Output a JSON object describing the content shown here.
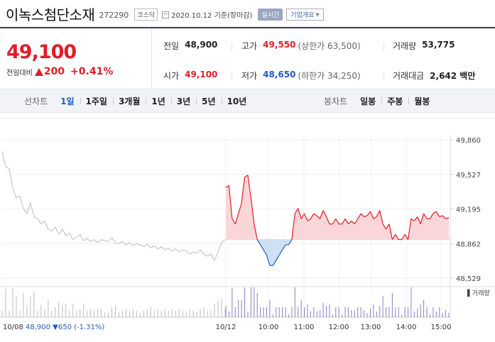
{
  "header": {
    "stock_name": "이녹스첨단소재",
    "stock_code": "272290",
    "market": "코스닥",
    "date": "2020.10.12",
    "date_suffix": "기준(장마감)",
    "realtime_label": "실시간",
    "company_button": "기업개요"
  },
  "price": {
    "current": "49,100",
    "change_label": "전일대비",
    "change_value": "200",
    "change_pct": "+0.41%"
  },
  "stats": {
    "prev_close_label": "전일",
    "prev_close": "48,900",
    "high_label": "고가",
    "high": "49,550",
    "upper_limit": "(상한가 63,500)",
    "volume_label": "거래량",
    "volume": "53,775",
    "open_label": "시가",
    "open": "49,100",
    "low_label": "저가",
    "low": "48,650",
    "lower_limit": "(하한가 34,250)",
    "amount_label": "거래대금",
    "amount": "2,642 백만"
  },
  "toolbar": {
    "line_chart_label": "선차트",
    "periods": [
      "1일",
      "1주일",
      "3개월",
      "1년",
      "3년",
      "5년",
      "10년"
    ],
    "active_period": "1일",
    "candle_chart_label": "봉차트",
    "candle_periods": [
      "일봉",
      "주봉",
      "월봉"
    ]
  },
  "colors": {
    "up": "#e01d28",
    "down": "#1f5cc0",
    "grey_line": "#bdbdbd"
  },
  "chart_data": {
    "type": "line",
    "ylabel": "",
    "y_ticks": [
      "49,860",
      "49,527",
      "49,195",
      "48,862",
      "48,529"
    ],
    "ylim": [
      48529,
      49860
    ],
    "baseline": 48900,
    "volume_label": "거래량",
    "prev_day_label": "10/08",
    "prev_day_summary": "48,900 ▼650 (-1.31%)",
    "x_ticks": [
      "10/12",
      "10:00",
      "11:00",
      "12:00",
      "13:00",
      "14:00",
      "15:00"
    ],
    "prev_day_series": [
      49750,
      49600,
      49580,
      49400,
      49300,
      49320,
      49200,
      49150,
      49250,
      49120,
      49100,
      49050,
      49080,
      49000,
      48980,
      49020,
      48950,
      49000,
      48940,
      48960,
      48900,
      48920,
      48950,
      48890,
      48910,
      48880,
      48900,
      48870,
      48900,
      48890,
      48880,
      48920,
      48870,
      48860,
      48880,
      48850,
      48870,
      48840,
      48860,
      48850,
      48830,
      48860,
      48820,
      48840,
      48810,
      48830,
      48800,
      48820,
      48790,
      48810,
      48780,
      48800,
      48790,
      48760,
      48780,
      48770,
      48800,
      48760,
      48740,
      48760,
      48700,
      48780,
      48870,
      48900
    ],
    "today_series": [
      49400,
      49420,
      49100,
      49050,
      49150,
      49250,
      49500,
      49520,
      49300,
      49050,
      48900,
      48850,
      48800,
      48750,
      48650,
      48650,
      48700,
      48750,
      48800,
      48850,
      48850,
      48900,
      49150,
      49200,
      49100,
      49150,
      49080,
      49100,
      49150,
      49130,
      49100,
      49180,
      49120,
      49050,
      49050,
      49100,
      49050,
      49050,
      49100,
      49050,
      49080,
      49050,
      49100,
      49150,
      49120,
      49130,
      49170,
      49100,
      49120,
      49180,
      49050,
      49000,
      49050,
      48900,
      48950,
      48900,
      48900,
      48950,
      48900,
      49100,
      49080,
      49120,
      49050,
      49150,
      49100,
      49100,
      49150,
      49170,
      49120,
      49130,
      49100,
      49110
    ]
  }
}
